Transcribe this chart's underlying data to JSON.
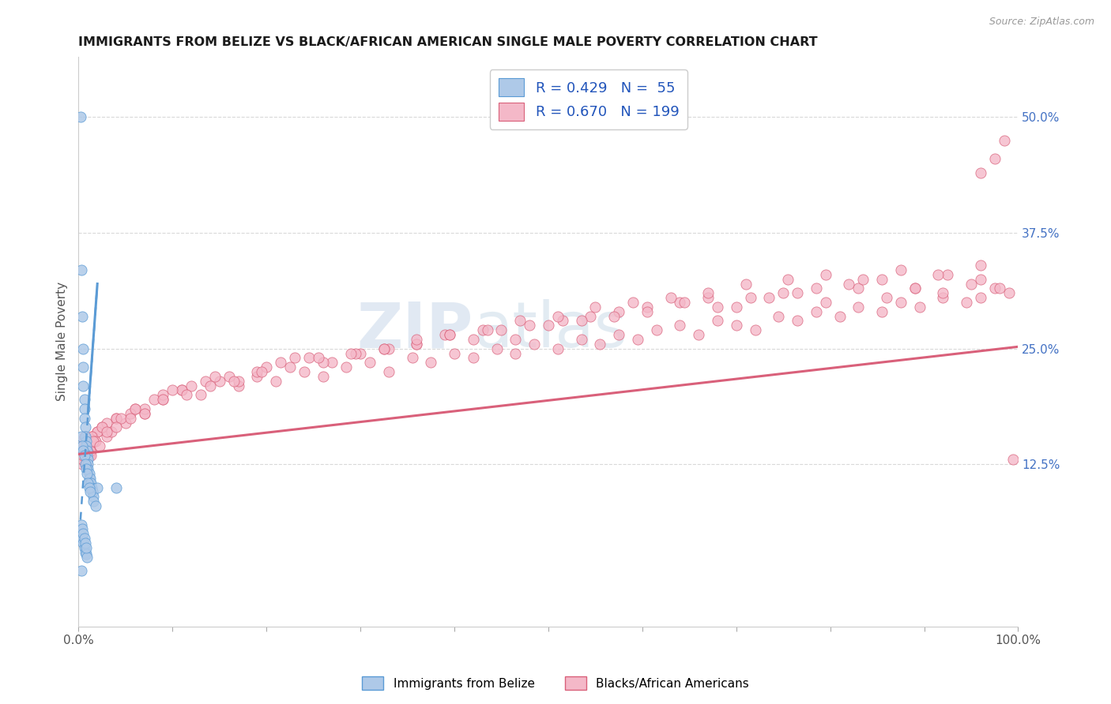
{
  "title": "IMMIGRANTS FROM BELIZE VS BLACK/AFRICAN AMERICAN SINGLE MALE POVERTY CORRELATION CHART",
  "source": "Source: ZipAtlas.com",
  "ylabel": "Single Male Poverty",
  "xlim": [
    0,
    1.0
  ],
  "ylim": [
    -0.05,
    0.565
  ],
  "ytick_positions": [
    0.125,
    0.25,
    0.375,
    0.5
  ],
  "ytick_labels": [
    "12.5%",
    "25.0%",
    "37.5%",
    "50.0%"
  ],
  "R_blue": 0.429,
  "N_blue": 55,
  "R_pink": 0.67,
  "N_pink": 199,
  "blue_color": "#aec9e8",
  "blue_edge_color": "#5b9bd5",
  "pink_color": "#f4b8c8",
  "pink_edge_color": "#d9607a",
  "legend_label_blue": "Immigrants from Belize",
  "legend_label_pink": "Blacks/African Americans",
  "watermark_zip": "ZIP",
  "watermark_atlas": "atlas",
  "title_color": "#1a1a1a",
  "right_tick_color": "#4472c4",
  "grid_color": "#d9d9d9",
  "blue_solid_line": [
    [
      0.01,
      0.18
    ],
    [
      0.02,
      0.32
    ]
  ],
  "blue_dash_line": [
    [
      0.002,
      0.065
    ],
    [
      0.02,
      0.32
    ]
  ],
  "pink_line": [
    [
      0.0,
      0.136
    ],
    [
      1.0,
      0.252
    ]
  ],
  "blue_scatter_x": [
    0.002,
    0.003,
    0.004,
    0.005,
    0.005,
    0.005,
    0.006,
    0.006,
    0.006,
    0.007,
    0.007,
    0.008,
    0.008,
    0.009,
    0.009,
    0.01,
    0.01,
    0.01,
    0.011,
    0.011,
    0.012,
    0.012,
    0.013,
    0.013,
    0.014,
    0.015,
    0.015,
    0.016,
    0.016,
    0.018,
    0.02,
    0.003,
    0.004,
    0.005,
    0.006,
    0.007,
    0.008,
    0.009,
    0.01,
    0.011,
    0.012,
    0.004,
    0.005,
    0.006,
    0.007,
    0.008,
    0.009,
    0.003,
    0.004,
    0.005,
    0.006,
    0.007,
    0.008,
    0.04,
    0.003
  ],
  "blue_scatter_y": [
    0.5,
    0.335,
    0.285,
    0.25,
    0.23,
    0.21,
    0.195,
    0.185,
    0.175,
    0.165,
    0.155,
    0.15,
    0.145,
    0.14,
    0.135,
    0.13,
    0.125,
    0.12,
    0.115,
    0.11,
    0.11,
    0.105,
    0.105,
    0.1,
    0.1,
    0.095,
    0.095,
    0.09,
    0.085,
    0.08,
    0.1,
    0.155,
    0.145,
    0.14,
    0.135,
    0.125,
    0.12,
    0.115,
    0.105,
    0.1,
    0.095,
    0.045,
    0.04,
    0.035,
    0.03,
    0.028,
    0.025,
    0.06,
    0.055,
    0.05,
    0.045,
    0.04,
    0.035,
    0.1,
    0.01
  ],
  "pink_scatter_x": [
    0.002,
    0.003,
    0.004,
    0.004,
    0.005,
    0.006,
    0.007,
    0.008,
    0.009,
    0.01,
    0.011,
    0.012,
    0.013,
    0.015,
    0.017,
    0.02,
    0.025,
    0.03,
    0.04,
    0.05,
    0.06,
    0.07,
    0.09,
    0.11,
    0.13,
    0.15,
    0.17,
    0.19,
    0.21,
    0.24,
    0.26,
    0.285,
    0.31,
    0.33,
    0.355,
    0.375,
    0.4,
    0.42,
    0.445,
    0.465,
    0.485,
    0.51,
    0.535,
    0.555,
    0.575,
    0.595,
    0.615,
    0.64,
    0.66,
    0.68,
    0.7,
    0.72,
    0.745,
    0.765,
    0.785,
    0.81,
    0.83,
    0.855,
    0.875,
    0.895,
    0.92,
    0.945,
    0.96,
    0.975,
    0.99,
    0.003,
    0.005,
    0.007,
    0.009,
    0.012,
    0.015,
    0.02,
    0.03,
    0.04,
    0.055,
    0.07,
    0.09,
    0.11,
    0.135,
    0.16,
    0.19,
    0.215,
    0.245,
    0.27,
    0.3,
    0.33,
    0.36,
    0.39,
    0.42,
    0.45,
    0.48,
    0.515,
    0.545,
    0.575,
    0.605,
    0.64,
    0.67,
    0.7,
    0.735,
    0.765,
    0.795,
    0.83,
    0.86,
    0.89,
    0.92,
    0.95,
    0.98,
    0.004,
    0.006,
    0.008,
    0.01,
    0.014,
    0.018,
    0.025,
    0.035,
    0.045,
    0.06,
    0.08,
    0.1,
    0.12,
    0.145,
    0.17,
    0.2,
    0.23,
    0.26,
    0.295,
    0.325,
    0.36,
    0.395,
    0.43,
    0.465,
    0.5,
    0.535,
    0.57,
    0.605,
    0.645,
    0.68,
    0.715,
    0.75,
    0.785,
    0.82,
    0.855,
    0.89,
    0.925,
    0.96,
    0.005,
    0.008,
    0.012,
    0.016,
    0.022,
    0.03,
    0.04,
    0.055,
    0.07,
    0.09,
    0.115,
    0.14,
    0.165,
    0.195,
    0.225,
    0.255,
    0.29,
    0.325,
    0.36,
    0.395,
    0.435,
    0.47,
    0.51,
    0.55,
    0.59,
    0.63,
    0.67,
    0.71,
    0.755,
    0.795,
    0.835,
    0.875,
    0.915,
    0.96,
    0.003,
    0.004,
    0.006,
    0.009,
    0.013,
    0.96,
    0.975,
    0.985,
    0.995
  ],
  "pink_scatter_y": [
    0.145,
    0.135,
    0.15,
    0.125,
    0.13,
    0.14,
    0.135,
    0.125,
    0.13,
    0.14,
    0.135,
    0.145,
    0.14,
    0.155,
    0.15,
    0.16,
    0.165,
    0.155,
    0.175,
    0.17,
    0.185,
    0.18,
    0.195,
    0.205,
    0.2,
    0.215,
    0.21,
    0.22,
    0.215,
    0.225,
    0.22,
    0.23,
    0.235,
    0.225,
    0.24,
    0.235,
    0.245,
    0.24,
    0.25,
    0.245,
    0.255,
    0.25,
    0.26,
    0.255,
    0.265,
    0.26,
    0.27,
    0.275,
    0.265,
    0.28,
    0.275,
    0.27,
    0.285,
    0.28,
    0.29,
    0.285,
    0.295,
    0.29,
    0.3,
    0.295,
    0.305,
    0.3,
    0.305,
    0.315,
    0.31,
    0.14,
    0.13,
    0.145,
    0.135,
    0.15,
    0.155,
    0.16,
    0.17,
    0.175,
    0.18,
    0.185,
    0.2,
    0.205,
    0.215,
    0.22,
    0.225,
    0.235,
    0.24,
    0.235,
    0.245,
    0.25,
    0.255,
    0.265,
    0.26,
    0.27,
    0.275,
    0.28,
    0.285,
    0.29,
    0.295,
    0.3,
    0.305,
    0.295,
    0.305,
    0.31,
    0.3,
    0.315,
    0.305,
    0.315,
    0.31,
    0.32,
    0.315,
    0.13,
    0.145,
    0.135,
    0.14,
    0.155,
    0.15,
    0.165,
    0.16,
    0.175,
    0.185,
    0.195,
    0.205,
    0.21,
    0.22,
    0.215,
    0.23,
    0.24,
    0.235,
    0.245,
    0.25,
    0.255,
    0.265,
    0.27,
    0.26,
    0.275,
    0.28,
    0.285,
    0.29,
    0.3,
    0.295,
    0.305,
    0.31,
    0.315,
    0.32,
    0.325,
    0.315,
    0.33,
    0.325,
    0.135,
    0.125,
    0.14,
    0.15,
    0.145,
    0.16,
    0.165,
    0.175,
    0.18,
    0.195,
    0.2,
    0.21,
    0.215,
    0.225,
    0.23,
    0.24,
    0.245,
    0.25,
    0.26,
    0.265,
    0.27,
    0.28,
    0.285,
    0.295,
    0.3,
    0.305,
    0.31,
    0.32,
    0.325,
    0.33,
    0.325,
    0.335,
    0.33,
    0.34,
    0.15,
    0.145,
    0.155,
    0.14,
    0.135,
    0.44,
    0.455,
    0.475,
    0.13
  ]
}
